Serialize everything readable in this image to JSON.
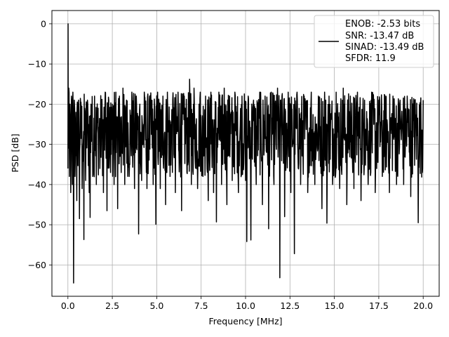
{
  "chart_data": {
    "type": "line",
    "title": "",
    "xlabel": "Frequency [MHz]",
    "ylabel": "PSD [dB]",
    "xlim": [
      -0.9,
      20.9
    ],
    "ylim": [
      -67.8,
      3.3
    ],
    "x_ticks": [
      0.0,
      2.5,
      5.0,
      7.5,
      10.0,
      12.5,
      15.0,
      17.5,
      20.0
    ],
    "x_tick_labels": [
      "0.0",
      "2.5",
      "5.0",
      "7.5",
      "10.0",
      "12.5",
      "15.0",
      "17.5",
      "20.0"
    ],
    "y_ticks": [
      0,
      -10,
      -20,
      -30,
      -40,
      -50,
      -60
    ],
    "y_tick_labels": [
      "0",
      "−10",
      "−20",
      "−30",
      "−40",
      "−50",
      "−60"
    ],
    "grid": true,
    "legend_position": "top-right",
    "legend_entries": [
      "ENOB: -2.53 bits",
      "SNR: -13.47 dB",
      "SINAD: -13.49 dB",
      "SFDR: 11.9"
    ],
    "series": [
      {
        "color": "#000000",
        "x_range": [
          0.0,
          20.0
        ],
        "noise_floor_band_db": [
          -42,
          -17
        ],
        "points": [
          [
            0.0,
            -36
          ],
          [
            0.01,
            0
          ],
          [
            0.03,
            -30
          ],
          [
            0.05,
            -16
          ],
          [
            0.08,
            -38
          ],
          [
            0.12,
            -20
          ],
          [
            0.16,
            -42
          ],
          [
            0.2,
            -18
          ],
          [
            0.25,
            -40
          ],
          [
            0.28,
            -17
          ],
          [
            0.32,
            -64.5
          ],
          [
            0.36,
            -19
          ],
          [
            0.4,
            -38
          ],
          [
            0.45,
            -22
          ],
          [
            0.5,
            -44
          ],
          [
            0.6,
            -19
          ],
          [
            0.65,
            -48.5
          ],
          [
            0.72,
            -20
          ],
          [
            0.8,
            -41
          ],
          [
            0.9,
            -53.7
          ],
          [
            0.95,
            -21
          ],
          [
            1.0,
            -39
          ],
          [
            1.1,
            -19
          ],
          [
            1.2,
            -42
          ],
          [
            1.25,
            -48.2
          ],
          [
            1.3,
            -20
          ],
          [
            1.4,
            -38
          ],
          [
            1.5,
            -18
          ],
          [
            1.6,
            -40
          ],
          [
            1.7,
            -21
          ],
          [
            1.8,
            -36
          ],
          [
            1.9,
            -19
          ],
          [
            2.0,
            -42
          ],
          [
            2.1,
            -17
          ],
          [
            2.2,
            -46.5
          ],
          [
            2.3,
            -19
          ],
          [
            2.4,
            -37
          ],
          [
            2.5,
            -20
          ],
          [
            2.6,
            -40
          ],
          [
            2.7,
            -17
          ],
          [
            2.8,
            -46
          ],
          [
            2.9,
            -18
          ],
          [
            3.0,
            -37
          ],
          [
            3.1,
            -16
          ],
          [
            3.2,
            -40
          ],
          [
            3.3,
            -19
          ],
          [
            3.45,
            -38
          ],
          [
            3.6,
            -17
          ],
          [
            3.75,
            -41
          ],
          [
            3.85,
            -18
          ],
          [
            3.98,
            -52.3
          ],
          [
            4.05,
            -20
          ],
          [
            4.15,
            -39
          ],
          [
            4.3,
            -17
          ],
          [
            4.45,
            -41
          ],
          [
            4.6,
            -18
          ],
          [
            4.8,
            -40
          ],
          [
            4.95,
            -49.9
          ],
          [
            5.05,
            -17
          ],
          [
            5.2,
            -41
          ],
          [
            5.35,
            -18
          ],
          [
            5.5,
            -45
          ],
          [
            5.6,
            -17
          ],
          [
            5.75,
            -38
          ],
          [
            5.9,
            -19
          ],
          [
            6.05,
            -42
          ],
          [
            6.2,
            -17
          ],
          [
            6.4,
            -46.5
          ],
          [
            6.55,
            -18
          ],
          [
            6.7,
            -37
          ],
          [
            6.85,
            -13.8
          ],
          [
            6.95,
            -40
          ],
          [
            7.1,
            -16
          ],
          [
            7.3,
            -41
          ],
          [
            7.45,
            -17
          ],
          [
            7.6,
            -38
          ],
          [
            7.75,
            -18
          ],
          [
            7.9,
            -44
          ],
          [
            8.05,
            -17
          ],
          [
            8.2,
            -42
          ],
          [
            8.36,
            -49.3
          ],
          [
            8.5,
            -17
          ],
          [
            8.65,
            -40
          ],
          [
            8.8,
            -16
          ],
          [
            8.95,
            -45
          ],
          [
            9.1,
            -18
          ],
          [
            9.25,
            -39
          ],
          [
            9.4,
            -17
          ],
          [
            9.6,
            -42
          ],
          [
            9.8,
            -18
          ],
          [
            10.0,
            -39
          ],
          [
            10.07,
            -54.2
          ],
          [
            10.15,
            -18
          ],
          [
            10.3,
            -53.8
          ],
          [
            10.45,
            -19
          ],
          [
            10.6,
            -40
          ],
          [
            10.8,
            -17
          ],
          [
            10.95,
            -45
          ],
          [
            11.1,
            -18
          ],
          [
            11.3,
            -51
          ],
          [
            11.45,
            -17
          ],
          [
            11.6,
            -40
          ],
          [
            11.8,
            -16
          ],
          [
            11.93,
            -63.2
          ],
          [
            12.05,
            -18
          ],
          [
            12.2,
            -48
          ],
          [
            12.4,
            -17
          ],
          [
            12.55,
            -42
          ],
          [
            12.75,
            -57.2
          ],
          [
            12.9,
            -17
          ],
          [
            13.1,
            -40
          ],
          [
            13.3,
            -18
          ],
          [
            13.5,
            -42
          ],
          [
            13.7,
            -17
          ],
          [
            13.9,
            -40
          ],
          [
            14.1,
            -18
          ],
          [
            14.3,
            -46
          ],
          [
            14.45,
            -17
          ],
          [
            14.58,
            -49.6
          ],
          [
            14.7,
            -18
          ],
          [
            14.9,
            -40
          ],
          [
            15.1,
            -17
          ],
          [
            15.3,
            -41
          ],
          [
            15.5,
            -16
          ],
          [
            15.7,
            -45
          ],
          [
            15.9,
            -18
          ],
          [
            16.1,
            -41
          ],
          [
            16.3,
            -17
          ],
          [
            16.5,
            -44
          ],
          [
            16.7,
            -19
          ],
          [
            16.9,
            -40
          ],
          [
            17.1,
            -17
          ],
          [
            17.3,
            -42
          ],
          [
            17.5,
            -19
          ],
          [
            17.7,
            -38
          ],
          [
            17.9,
            -18
          ],
          [
            18.1,
            -42
          ],
          [
            18.3,
            -18
          ],
          [
            18.5,
            -40
          ],
          [
            18.7,
            -19
          ],
          [
            18.9,
            -40
          ],
          [
            19.1,
            -18
          ],
          [
            19.3,
            -43
          ],
          [
            19.5,
            -19
          ],
          [
            19.72,
            -49.5
          ],
          [
            19.85,
            -20
          ],
          [
            19.95,
            -37
          ],
          [
            20.0,
            -19
          ]
        ]
      }
    ]
  }
}
